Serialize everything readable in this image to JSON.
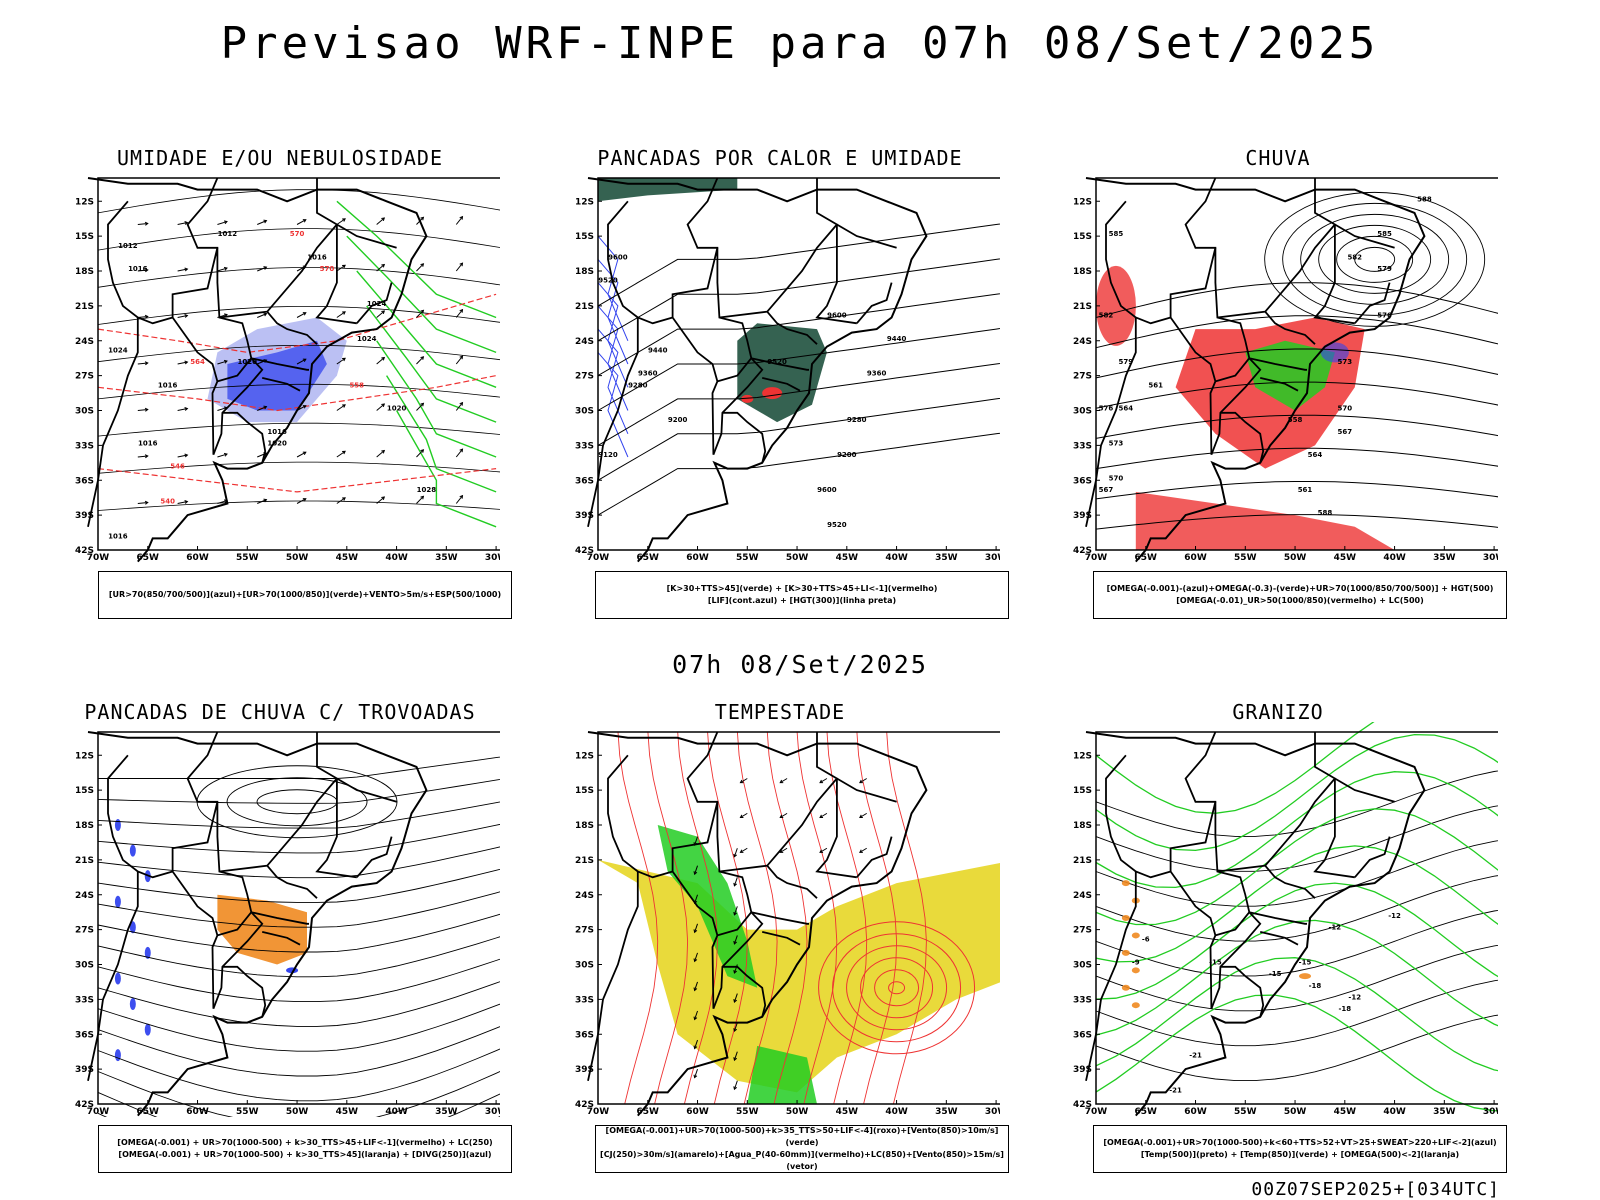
{
  "header": {
    "title": "Previsao WRF-INPE  para 07h 08/Set/2025"
  },
  "middle_title": "07h 08/Set/2025",
  "footer": "00Z07SEP2025+[034UTC]",
  "axes": {
    "lat_labels": [
      "12S",
      "15S",
      "18S",
      "21S",
      "24S",
      "27S",
      "30S",
      "33S",
      "36S",
      "39S",
      "42S"
    ],
    "lon_labels": [
      "70W",
      "65W",
      "60W",
      "55W",
      "50W",
      "45W",
      "40W",
      "35W",
      "30W"
    ]
  },
  "panels": [
    {
      "title": "UMIDADE E/OU NEBULOSIDADE",
      "legend": [
        "[UR>70(850/700/500)](azul)+[UR>70(1000/850)](verde)+VENTO>5m/s+ESP(500/1000)"
      ],
      "labels": [
        "1012",
        "1012",
        "1016",
        "1016",
        "1020",
        "1020",
        "1024",
        "1024",
        "1024",
        "1016",
        "1016",
        "1016",
        "1020",
        "1028",
        "1016",
        "570",
        "570",
        "564",
        "558",
        "546",
        "540"
      ]
    },
    {
      "title": "PANCADAS POR CALOR E UMIDADE",
      "legend": [
        "[K>30+TTS>45](verde) + [K>30+TTS>45+LI<-1](vermelho)",
        "[LIF](cont.azul) + [HGT(300)](linha preta)"
      ],
      "labels": [
        "9600",
        "9520",
        "9440",
        "9360",
        "9280",
        "9200",
        "9120",
        "9600",
        "9520",
        "9440",
        "9360",
        "9280",
        "9200",
        "9600",
        "9520"
      ]
    },
    {
      "title": "CHUVA",
      "legend": [
        "[OMEGA(-0.001)-(azul)+OMEGA(-0.3)-(verde)+UR>70(1000/850/700/500)] + HGT(500)",
        "[OMEGA(-0.01)_UR>50(1000/850)(vermelho) + LC(500)"
      ],
      "labels": [
        "588",
        "585",
        "582",
        "579",
        "576",
        "573",
        "570",
        "567",
        "564",
        "561",
        "588",
        "585",
        "582",
        "579",
        "576",
        "573",
        "570",
        "567",
        "564",
        "561",
        "558"
      ]
    },
    {
      "title": "PANCADAS DE CHUVA C/ TROVOADAS",
      "legend": [
        "[OMEGA(-0.001) + UR>70(1000-500) + k>30_TTS>45+LIF<-1](vermelho) + LC(250)",
        "[OMEGA(-0.001) + UR>70(1000-500) + k>30_TTS>45](laranja) + [DIVG(250)](azul)"
      ],
      "labels": []
    },
    {
      "title": "TEMPESTADE",
      "legend": [
        "[OMEGA(-0.001)+UR>70(1000-500)+k>35_TTS>50+LIF<-4](roxo)+[Vento(850)>10m/s](verde)",
        "[CJ(250)>30m/s](amarelo)+[Agua_P(40-60mm)](vermelho)+LC(850)+[Vento(850)>15m/s](vetor)"
      ],
      "labels": []
    },
    {
      "title": "GRANIZO",
      "legend": [
        "[OMEGA(-0.001)+UR>70(1000-500)+k<60+TTS>52+VT>25+SWEAT>220+LIF<-2](azul)",
        "[Temp(500)](preto) + [Temp(850)](verde) + [OMEGA(500)<-2](laranja)"
      ],
      "labels": [
        "-12",
        "-15",
        "-18",
        "-21",
        "-12",
        "-15",
        "-18",
        "-21",
        "-15",
        "-12",
        "-9",
        "-6"
      ]
    }
  ],
  "colors": {
    "red": "#ee3333",
    "green": "#22cc22",
    "blue": "#3344ee",
    "yellow": "#e8d830",
    "orange": "#f08a20",
    "darkgreen": "#2a5a48",
    "lightblue": "#aab0f0"
  }
}
